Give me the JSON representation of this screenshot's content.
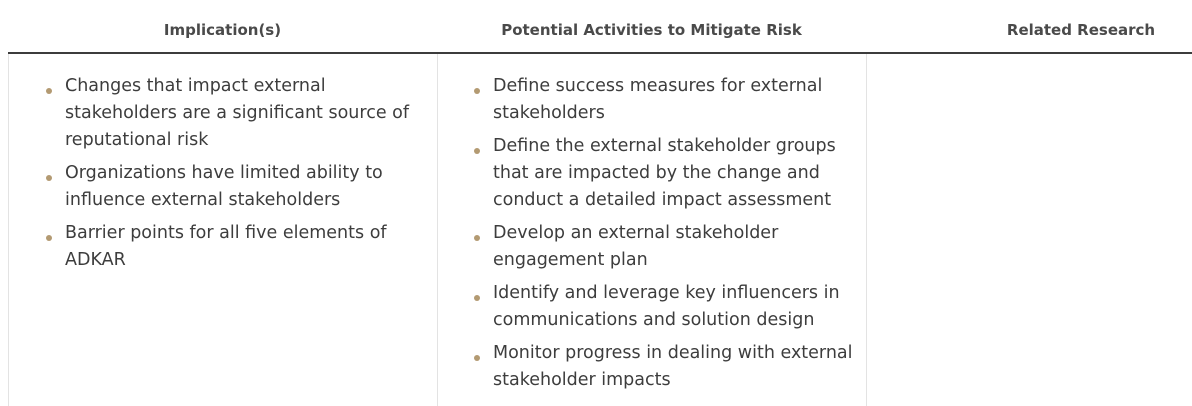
{
  "table": {
    "headers": [
      "Implication(s)",
      "Potential Activities to Mitigate Risk",
      "Related Research"
    ],
    "implications": [
      "Changes that impact external stakeholders are a significant source of reputational risk",
      "Organizations have limited ability to influence external stakeholders",
      "Barrier points for all five elements of ADKAR"
    ],
    "activities": [
      "Define success measures for external stakeholders",
      "Define the external stakeholder groups that are impacted by the change and conduct a detailed impact assessment",
      "Develop an external stakeholder engagement plan",
      "Identify and leverage key influencers in communications and solution design",
      "Monitor progress in dealing with external stakeholder impacts"
    ],
    "related_research": []
  },
  "colors": {
    "bullet": "#b39a72",
    "header_rule": "#3c3c3c",
    "column_divider": "#e3e3e3",
    "text": "#3d3d3d"
  }
}
